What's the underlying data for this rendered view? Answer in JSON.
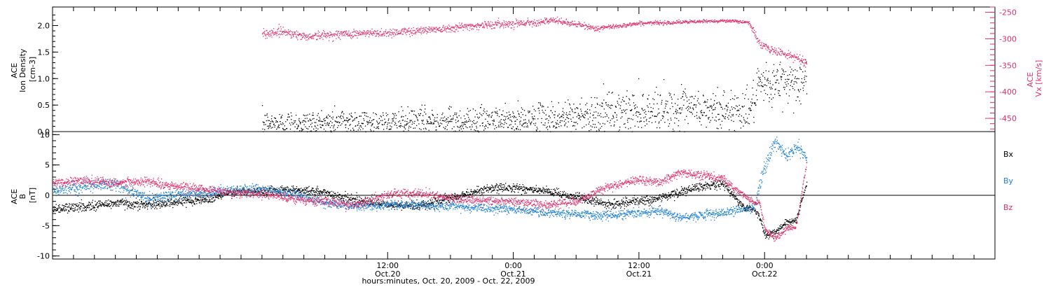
{
  "figure": {
    "xlabel": "hours:minutes, Oct. 20, 2009 - Oct. 22, 2009",
    "x_domain_hours": [
      -20,
      70
    ],
    "x_ticks": [
      {
        "hour": 12,
        "time": "12:00",
        "date": "Oct.20"
      },
      {
        "hour": 24,
        "time": "0:00",
        "date": "Oct.21"
      },
      {
        "hour": 36,
        "time": "12:00",
        "date": "Oct.21"
      },
      {
        "hour": 48,
        "time": "0:00",
        "date": "Oct.22"
      }
    ],
    "colors": {
      "black": "#000000",
      "pink": "#e0306a",
      "blue": "#1a7fd6"
    }
  },
  "chart_data": [
    {
      "type": "scatter",
      "panel": "top",
      "left_axis": {
        "label_lines": [
          "ACE",
          "Ion Density",
          "[cm-3]"
        ],
        "ylim": [
          0,
          2.35
        ],
        "ticks": [
          "0.0",
          "0.5",
          "1.0",
          "1.5",
          "2.0"
        ]
      },
      "right_axis": {
        "label_lines": [
          "ACE",
          "Vx [km/s]"
        ],
        "ylim": [
          -475,
          -240
        ],
        "ticks": [
          "-250",
          "-300",
          "-350",
          "-400",
          "-450"
        ]
      },
      "series": [
        {
          "axis": "left",
          "color": "#000000",
          "x": [
            0.0,
            4.0,
            8.0,
            12.0,
            16.0,
            20.0,
            24.0,
            28.0,
            32.0,
            36.0,
            40.0,
            44.0,
            46.5,
            47.0,
            47.5,
            48.5,
            50.0,
            52.0
          ],
          "y": [
            0.15,
            0.15,
            0.2,
            0.15,
            0.2,
            0.2,
            0.2,
            0.25,
            0.35,
            0.4,
            0.4,
            0.4,
            0.4,
            0.6,
            0.85,
            0.9,
            0.95,
            0.95
          ],
          "spread": [
            0.28,
            0.28,
            0.3,
            0.28,
            0.3,
            0.3,
            0.3,
            0.35,
            0.4,
            0.45,
            0.45,
            0.45,
            0.45,
            0.4,
            0.4,
            0.45,
            0.5,
            0.5
          ]
        },
        {
          "axis": "right",
          "color": "#e0306a",
          "x": [
            0.0,
            2.0,
            4.0,
            8.0,
            12.0,
            16.0,
            20.0,
            24.0,
            26.0,
            28.0,
            30.0,
            32.0,
            36.0,
            40.0,
            44.0,
            46.5,
            47.0,
            47.5,
            48.5,
            50.0,
            51.0,
            52.0
          ],
          "y": [
            -290,
            -285,
            -295,
            -290,
            -288,
            -282,
            -275,
            -270,
            -268,
            -265,
            -272,
            -280,
            -270,
            -268,
            -265,
            -268,
            -290,
            -308,
            -320,
            -328,
            -335,
            -345
          ],
          "spread": [
            10,
            9,
            9,
            9,
            9,
            8,
            8,
            8,
            7,
            7,
            6,
            6,
            4,
            4,
            3,
            4,
            8,
            8,
            8,
            8,
            8,
            8
          ]
        }
      ]
    },
    {
      "type": "scatter",
      "panel": "bottom",
      "left_axis": {
        "label_lines": [
          "ACE",
          "B",
          "[nT]"
        ],
        "ylim": [
          -10.5,
          10.5
        ],
        "ticks": [
          "-10",
          "-5",
          "0",
          "5",
          "10"
        ]
      },
      "zero_line": true,
      "legend": [
        "Bx",
        "By",
        "Bz"
      ],
      "series": [
        {
          "name": "Bx",
          "color": "#000000",
          "x": [
            -20,
            -17,
            -14,
            -11,
            -8,
            -5,
            -3,
            0,
            3,
            6,
            9,
            12,
            15,
            18,
            21,
            24,
            27,
            30,
            33,
            36,
            38,
            40,
            42,
            44,
            46,
            47,
            47.5,
            48,
            49,
            50,
            51,
            52
          ],
          "y": [
            -2.2,
            -1.8,
            -1.2,
            -1.5,
            -1.0,
            -0.5,
            0.5,
            0.8,
            1.0,
            0.5,
            -0.8,
            -1.6,
            -1.6,
            -0.5,
            1.0,
            1.4,
            0.7,
            -0.2,
            -1.5,
            -0.9,
            -0.4,
            0.6,
            1.5,
            2.0,
            -2.0,
            -2.2,
            -3.5,
            -6.5,
            -6.0,
            -4.5,
            -4.0,
            2.0
          ],
          "spread": [
            0.9,
            0.9,
            0.9,
            0.9,
            0.8,
            0.8,
            0.8,
            0.8,
            0.8,
            0.8,
            0.8,
            0.8,
            0.8,
            0.8,
            0.8,
            0.8,
            0.8,
            0.8,
            0.8,
            0.8,
            0.8,
            0.8,
            0.8,
            0.8,
            0.6,
            0.6,
            0.6,
            0.6,
            0.6,
            0.6,
            0.6,
            0.6
          ]
        },
        {
          "name": "By",
          "color": "#1a7fd6",
          "x": [
            -20,
            -17,
            -14,
            -11,
            -8,
            -5,
            -3,
            0,
            3,
            6,
            9,
            12,
            15,
            18,
            21,
            24,
            27,
            30,
            33,
            36,
            38,
            40,
            42,
            44,
            46,
            47,
            47.5,
            48,
            49,
            50,
            51,
            52
          ],
          "y": [
            0.8,
            1.6,
            2.0,
            -0.5,
            0.2,
            0.5,
            1.0,
            1.0,
            0.3,
            -1.2,
            -1.8,
            -1.5,
            -1.6,
            -1.8,
            -2.0,
            -2.2,
            -2.8,
            -3.0,
            -3.3,
            -2.8,
            -2.5,
            -3.5,
            -3.2,
            -2.8,
            -2.2,
            -2.0,
            2.0,
            4.5,
            9.0,
            6.5,
            8.0,
            6.0
          ],
          "spread": [
            1.0,
            1.0,
            1.0,
            1.0,
            0.9,
            0.9,
            0.9,
            0.9,
            0.8,
            0.8,
            0.8,
            0.8,
            0.8,
            0.8,
            0.8,
            0.8,
            0.8,
            0.8,
            0.8,
            0.8,
            0.8,
            0.8,
            0.8,
            0.8,
            0.7,
            0.7,
            1.5,
            1.5,
            1.2,
            1.2,
            1.2,
            1.2
          ]
        },
        {
          "name": "Bz",
          "color": "#e0306a",
          "x": [
            -20,
            -17,
            -14,
            -11,
            -8,
            -5,
            -3,
            0,
            3,
            6,
            9,
            12,
            15,
            18,
            21,
            24,
            27,
            30,
            33,
            36,
            38,
            40,
            42,
            44,
            46,
            47,
            47.5,
            48,
            49,
            50,
            51,
            52
          ],
          "y": [
            2.2,
            2.5,
            2.0,
            2.4,
            1.5,
            1.0,
            0.5,
            0.3,
            -0.5,
            -1.0,
            -1.5,
            0.2,
            0.5,
            -0.5,
            -0.8,
            -1.0,
            -1.5,
            -1.0,
            1.5,
            2.6,
            2.2,
            3.8,
            3.3,
            2.8,
            0.0,
            -1.0,
            -1.2,
            -5.5,
            -7.0,
            -5.5,
            -5.0,
            5.5
          ],
          "spread": [
            0.8,
            0.8,
            0.8,
            0.8,
            0.8,
            0.8,
            0.8,
            0.8,
            0.8,
            0.8,
            0.8,
            0.8,
            0.8,
            0.8,
            0.8,
            0.8,
            0.8,
            0.8,
            0.8,
            0.8,
            0.8,
            0.8,
            0.8,
            0.8,
            0.6,
            0.6,
            0.6,
            0.6,
            0.6,
            0.6,
            0.6,
            0.6
          ]
        }
      ]
    }
  ]
}
